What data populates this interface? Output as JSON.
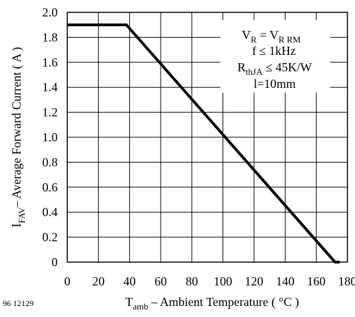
{
  "figure_code": "96 12129",
  "chart_data": {
    "type": "line",
    "x_label": {
      "main": "T",
      "sub": "amb",
      "rest": " – Ambient Temperature ( °C )"
    },
    "y_label": {
      "main": "I",
      "sub": "FAV",
      "rest": "– Average Forward Current ( A )"
    },
    "x_range": [
      0,
      180
    ],
    "y_range": [
      0,
      2.0
    ],
    "x_ticks": [
      "0",
      "20",
      "40",
      "60",
      "80",
      "100",
      "120",
      "140",
      "160",
      "180"
    ],
    "y_ticks": [
      "0",
      "0.2",
      "0.4",
      "0.6",
      "0.8",
      "1.0",
      "1.2",
      "1.4",
      "1.6",
      "1.8",
      "2.0"
    ],
    "grid": true,
    "series": [
      {
        "x": [
          0,
          38,
          172,
          175
        ],
        "y": [
          1.9,
          1.9,
          0,
          0
        ]
      }
    ],
    "annotation": {
      "line1": {
        "a": "V",
        "a_sub": "R",
        "mid": " = V",
        "b_sub": "R RM"
      },
      "line2": "f ≤ 1kHz",
      "line3": {
        "a": "R",
        "a_sub": "thJA",
        "rest": " ≤ 45K/W"
      },
      "line4": "l=10mm"
    }
  }
}
